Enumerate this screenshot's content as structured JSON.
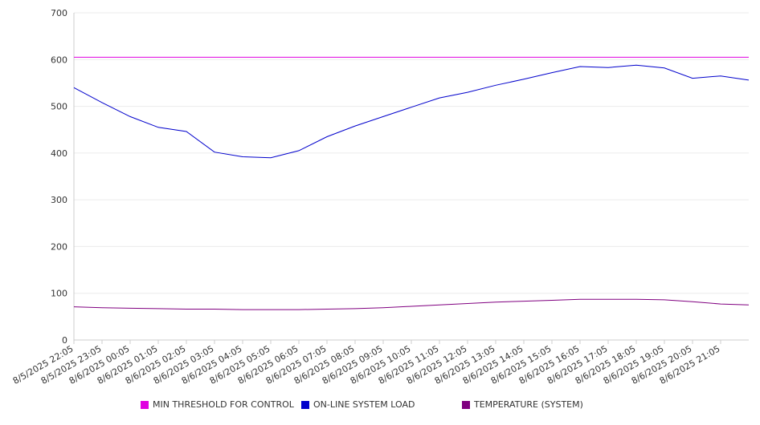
{
  "chart_data": {
    "type": "line",
    "title": "",
    "xlabel": "",
    "ylabel": "",
    "ylim": [
      0,
      700
    ],
    "y_ticks": [
      0,
      100,
      200,
      300,
      400,
      500,
      600,
      700
    ],
    "grid": true,
    "legend_position": "bottom",
    "x_tick_labels": [
      "8/5/2025 22:05",
      "8/5/2025 23:05",
      "8/6/2025 00:05",
      "8/6/2025 01:05",
      "8/6/2025 02:05",
      "8/6/2025 03:05",
      "8/6/2025 04:05",
      "8/6/2025 05:05",
      "8/6/2025 06:05",
      "8/6/2025 07:05",
      "8/6/2025 08:05",
      "8/6/2025 09:05",
      "8/6/2025 10:05",
      "8/6/2025 11:05",
      "8/6/2025 12:05",
      "8/6/2025 13:05",
      "8/6/2025 14:05",
      "8/6/2025 15:05",
      "8/6/2025 16:05",
      "8/6/2025 17:05",
      "8/6/2025 18:05",
      "8/6/2025 19:05",
      "8/6/2025 20:05",
      "8/6/2025 21:05"
    ],
    "series": [
      {
        "name": "MIN THRESHOLD FOR CONTROL",
        "color": "#e000e0",
        "values": [
          605,
          605,
          605,
          605,
          605,
          605,
          605,
          605,
          605,
          605,
          605,
          605,
          605,
          605,
          605,
          605,
          605,
          605,
          605,
          605,
          605,
          605,
          605,
          605,
          605
        ]
      },
      {
        "name": "ON-LINE SYSTEM LOAD",
        "color": "#0000cc",
        "values": [
          540,
          508,
          478,
          455,
          446,
          402,
          392,
          390,
          405,
          435,
          458,
          478,
          498,
          518,
          530,
          545,
          558,
          572,
          585,
          583,
          588,
          582,
          560,
          565,
          556
        ]
      },
      {
        "name": "TEMPERATURE (SYSTEM)",
        "color": "#800080",
        "values": [
          71,
          69,
          68,
          67,
          66,
          66,
          65,
          65,
          65,
          66,
          67,
          69,
          72,
          75,
          78,
          81,
          83,
          85,
          87,
          87,
          87,
          86,
          82,
          77,
          75
        ]
      }
    ]
  }
}
